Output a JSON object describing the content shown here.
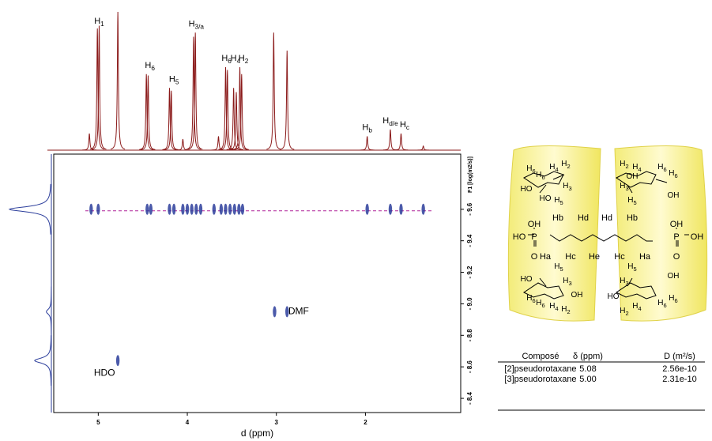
{
  "chart_data": {
    "type": "dosy",
    "x_label": "d (ppm)",
    "y_label": "F1 [log(m2/s)]",
    "xlim": [
      5.5,
      0.93
    ],
    "xticks": [
      5,
      4,
      3,
      2
    ],
    "ylim": [
      -9.95,
      -8.31
    ],
    "yticks": [
      {
        "value": -9.6,
        "label": "- 9.6"
      },
      {
        "value": -9.4,
        "label": "- 9.4"
      },
      {
        "value": -9.2,
        "label": "- 9.2"
      },
      {
        "value": -9.0,
        "label": "- 9.0"
      },
      {
        "value": -8.8,
        "label": "- 8.8"
      },
      {
        "value": -8.6,
        "label": "- 8.6"
      },
      {
        "value": -8.4,
        "label": "- 8.4"
      }
    ],
    "spectrum_color": "#8b1a1a",
    "spectrum": {
      "x": [
        5.1,
        5.01,
        4.99,
        4.78,
        4.46,
        4.44,
        4.2,
        4.18,
        4.05,
        3.93,
        3.91,
        3.65,
        3.57,
        3.55,
        3.48,
        3.45,
        3.41,
        3.39,
        3.03,
        2.88,
        1.98,
        1.72,
        1.6,
        1.35
      ],
      "heights": [
        12,
        88,
        90,
        100,
        55,
        54,
        45,
        43,
        8,
        82,
        85,
        10,
        60,
        58,
        45,
        42,
        60,
        55,
        85,
        72,
        10,
        15,
        12,
        3
      ]
    },
    "peak_labels": [
      {
        "base": "H",
        "sub": "1",
        "x": 4.99
      },
      {
        "base": "H",
        "sub": "6",
        "x": 4.42
      },
      {
        "base": "H",
        "sub": "5",
        "x": 4.15
      },
      {
        "base": "H",
        "sub": "3/a",
        "x": 3.9
      },
      {
        "base": "H",
        "sub": "6",
        "x": 3.56
      },
      {
        "base": "H",
        "sub": "4",
        "x": 3.46
      },
      {
        "base": "H",
        "sub": "2",
        "x": 3.37
      },
      {
        "base": "H",
        "sub": "b",
        "x": 1.98
      },
      {
        "base": "H",
        "sub": "d/e",
        "x": 1.72
      },
      {
        "base": "H",
        "sub": "c",
        "x": 1.56
      }
    ],
    "series": [
      {
        "color": "#2b3d9b",
        "x": [
          5.08,
          5.0,
          4.45,
          4.41,
          4.2,
          4.15,
          4.05,
          4.0,
          3.95,
          3.9,
          3.85,
          3.7,
          3.62,
          3.57,
          3.52,
          3.47,
          3.42,
          3.38,
          1.98,
          1.72,
          1.6,
          1.35,
          3.02,
          2.88,
          4.78
        ],
        "y": [
          -9.6,
          -9.6,
          -9.6,
          -9.6,
          -9.6,
          -9.6,
          -9.6,
          -9.6,
          -9.6,
          -9.6,
          -9.6,
          -9.6,
          -9.6,
          -9.6,
          -9.6,
          -9.6,
          -9.6,
          -9.6,
          -9.6,
          -9.6,
          -9.6,
          -9.6,
          -8.95,
          -8.95,
          -8.64
        ]
      }
    ],
    "reference_line": -9.59,
    "annotations": [
      {
        "text": "DMF",
        "x": 2.75,
        "y": -8.95
      },
      {
        "text": "HDO",
        "x": 4.93,
        "y": -8.56
      }
    ],
    "projection": {
      "y": [
        -9.6,
        -8.95,
        -8.64
      ],
      "heights": [
        100,
        12,
        40
      ]
    }
  },
  "molecule": {
    "chain": [
      "HO",
      "P",
      "OH",
      "O",
      "Hb",
      "Hd",
      "Hd",
      "Hb",
      "Ha",
      "Hc",
      "He",
      "Hc",
      "Ha",
      "OH",
      "P",
      "OH",
      "O"
    ],
    "cd_labels": [
      {
        "base": "H",
        "sub": "6"
      },
      {
        "base": "H",
        "sub": "6"
      },
      {
        "base": "H",
        "sub": "4"
      },
      {
        "base": "H",
        "sub": "2"
      },
      {
        "base": "H",
        "sub": "3"
      },
      {
        "base": "H",
        "sub": "5"
      },
      {
        "base": "HO"
      },
      {
        "base": "HO"
      },
      {
        "base": "H",
        "sub": "2"
      },
      {
        "base": "H",
        "sub": "4"
      },
      {
        "base": "H",
        "sub": "6"
      },
      {
        "base": "H",
        "sub": "6"
      },
      {
        "base": "H",
        "sub": "3"
      },
      {
        "base": "H",
        "sub": "5"
      },
      {
        "base": "OH"
      },
      {
        "base": "OH"
      },
      {
        "base": "H",
        "sub": "5"
      },
      {
        "base": "H",
        "sub": "3"
      },
      {
        "base": "H",
        "sub": "6"
      },
      {
        "base": "H",
        "sub": "6"
      },
      {
        "base": "H",
        "sub": "4"
      },
      {
        "base": "H",
        "sub": "2"
      },
      {
        "base": "HO"
      },
      {
        "base": "OH"
      },
      {
        "base": "H",
        "sub": "5"
      },
      {
        "base": "H",
        "sub": "3"
      },
      {
        "base": "H",
        "sub": "2"
      },
      {
        "base": "H",
        "sub": "4"
      },
      {
        "base": "H",
        "sub": "6"
      },
      {
        "base": "H",
        "sub": "6"
      },
      {
        "base": "OH"
      },
      {
        "base": "HO"
      }
    ]
  },
  "table": {
    "header": [
      "Composé",
      "δ (ppm)",
      "D (m²/s)"
    ],
    "rows": [
      [
        "[2]pseudorotaxane",
        "5.08",
        "2.56e-10"
      ],
      [
        "[3]pseudorotaxane",
        "5.00",
        "2.31e-10"
      ]
    ]
  }
}
